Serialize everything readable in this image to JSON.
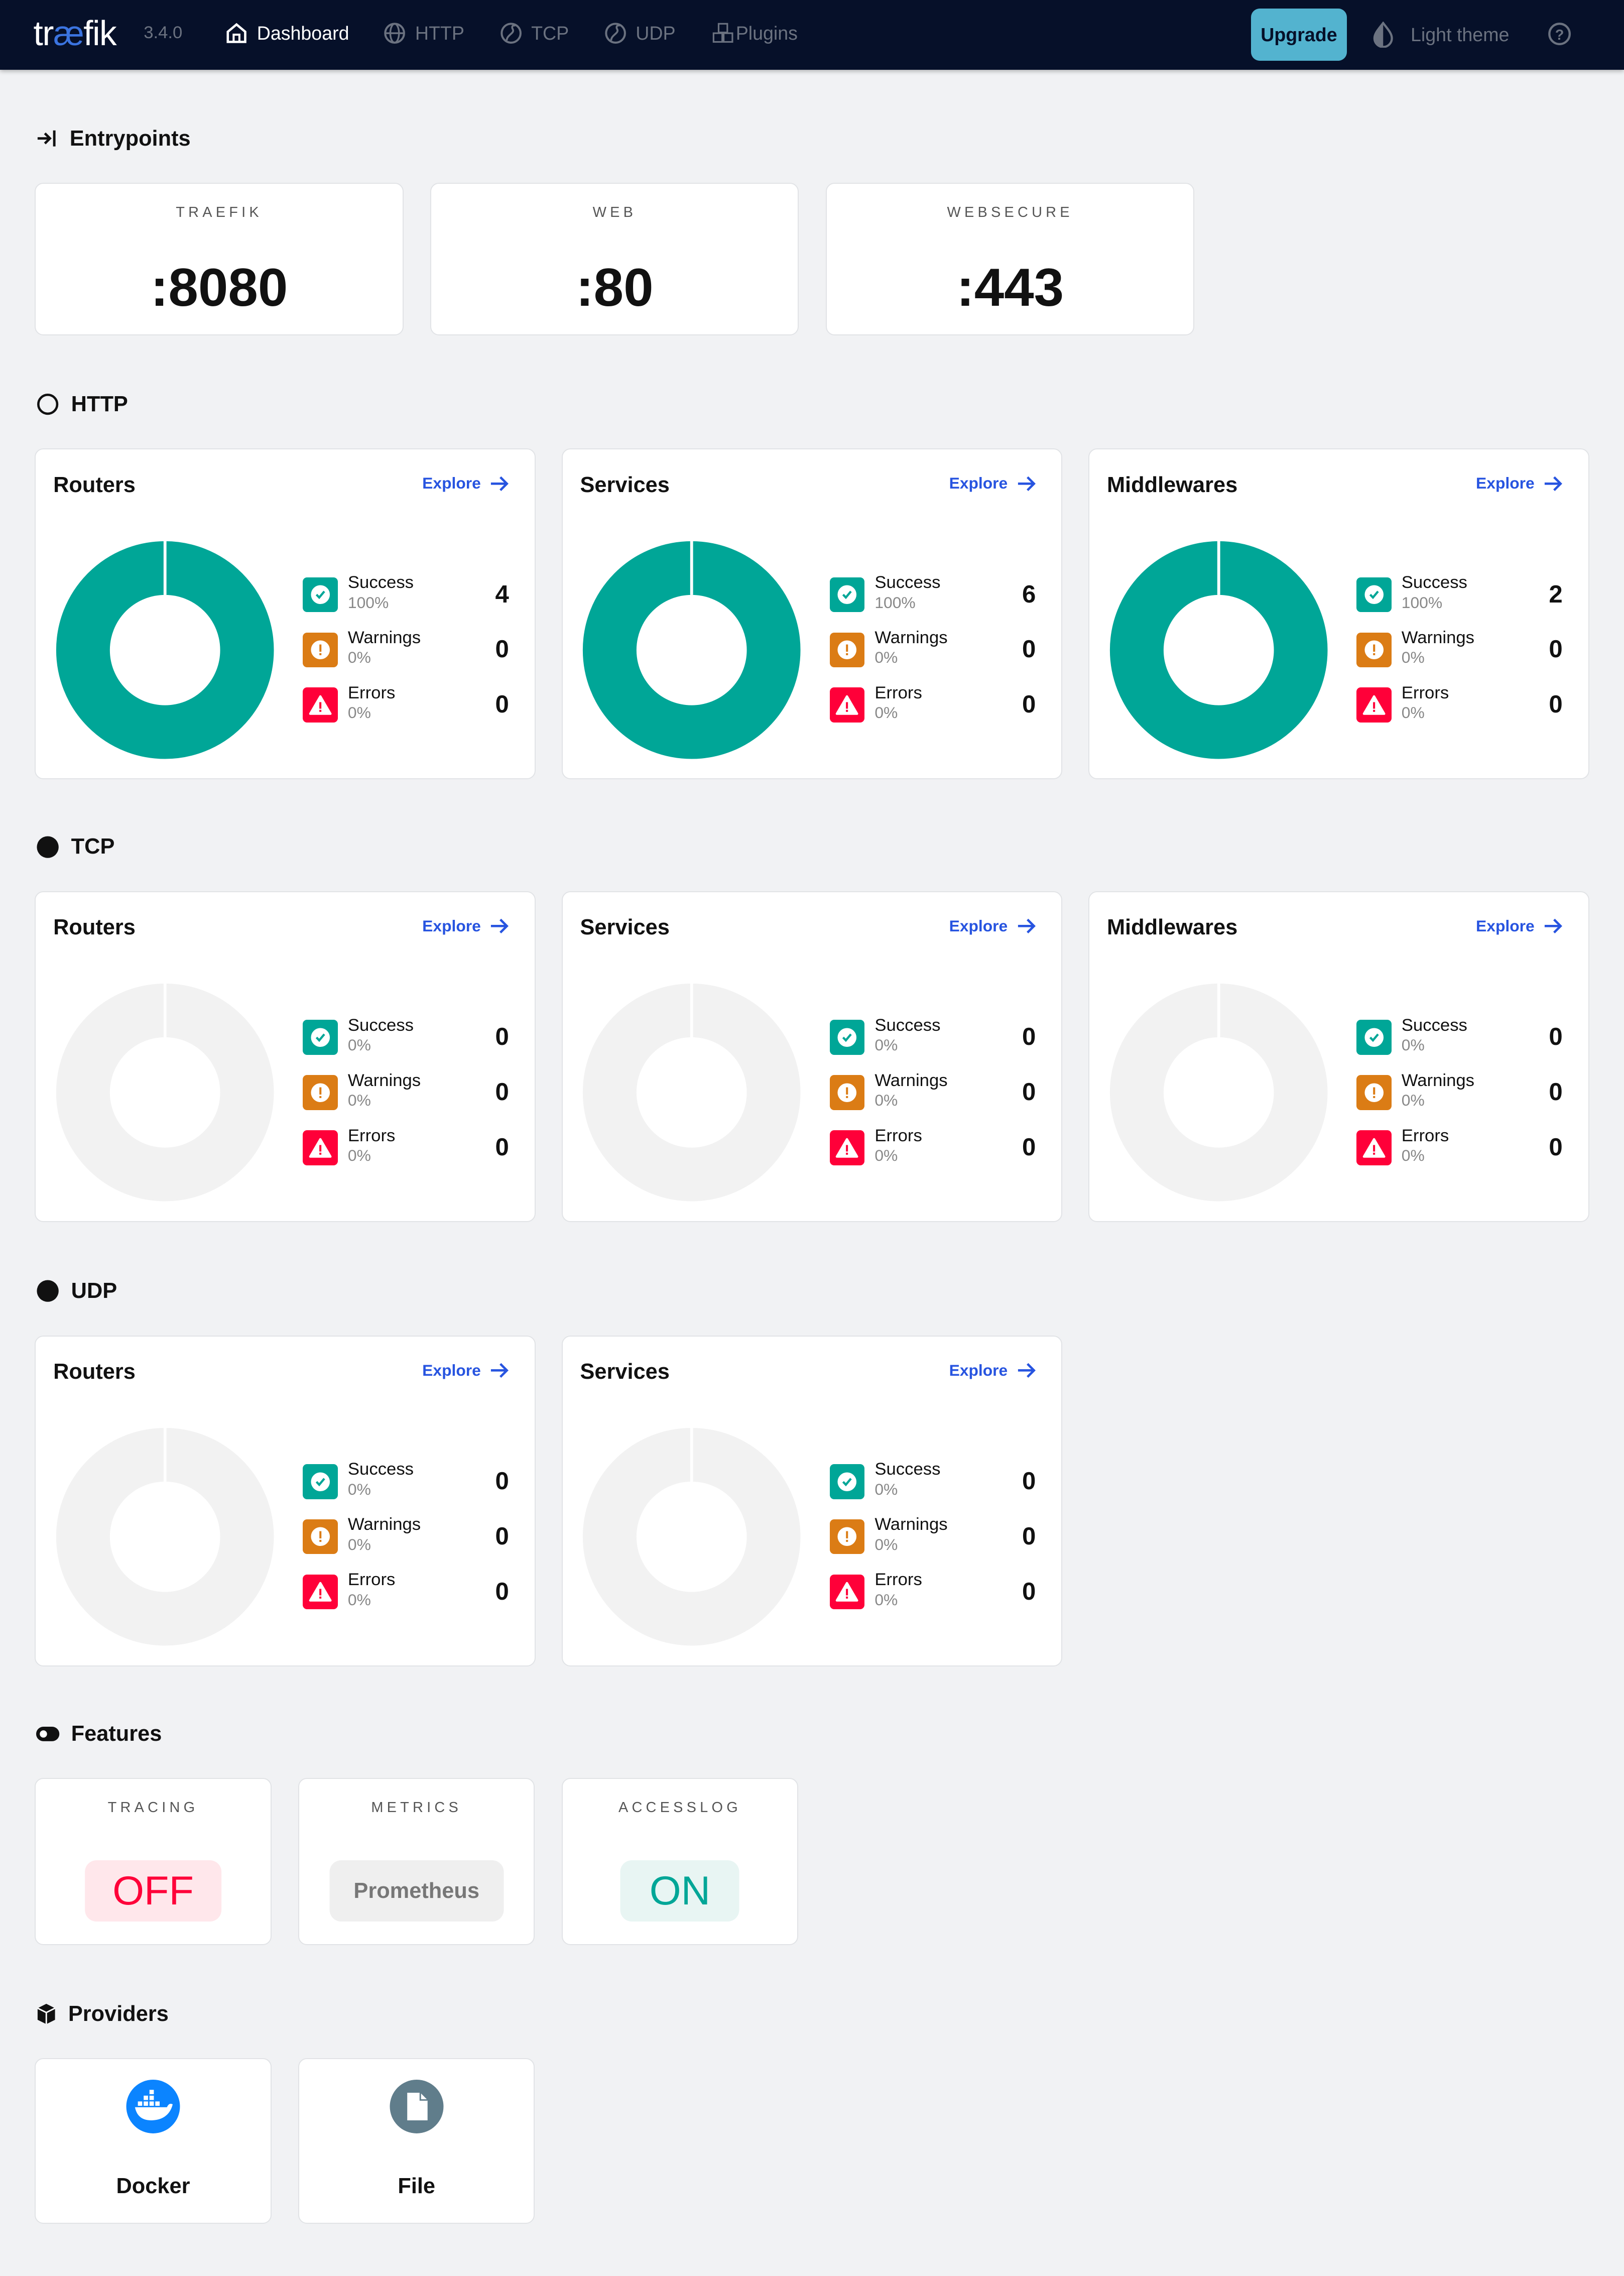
{
  "nav": {
    "logo": "træfik",
    "version": "3.4.0",
    "items": [
      {
        "label": "Dashboard",
        "icon": "home-icon",
        "active": true
      },
      {
        "label": "HTTP",
        "icon": "globe-icon",
        "active": false
      },
      {
        "label": "TCP",
        "icon": "tcp-icon",
        "active": false
      },
      {
        "label": "UDP",
        "icon": "udp-icon",
        "active": false
      },
      {
        "label": "Plugins",
        "icon": "plugins-icon",
        "active": false
      }
    ],
    "upgrade_label": "Upgrade",
    "theme_label": "Light theme",
    "help_icon": "help-icon"
  },
  "colors": {
    "nav_bg": "#061029",
    "accent": "#53b3cf",
    "success": "#00a697",
    "warning": "#db7c15",
    "error": "#ff0039",
    "link": "#2754e0",
    "empty": "#f2f2f2"
  },
  "entrypoints": {
    "title": "Entrypoints",
    "items": [
      {
        "name": "TRAEFIK",
        "address": ":8080"
      },
      {
        "name": "WEB",
        "address": ":80"
      },
      {
        "name": "WEBSECURE",
        "address": ":443"
      }
    ]
  },
  "explore_label": "Explore",
  "legend_labels": {
    "success": "Success",
    "warnings": "Warnings",
    "errors": "Errors"
  },
  "sections": [
    {
      "title": "HTTP",
      "icon": "globe-icon",
      "cards": [
        {
          "title": "Routers",
          "success": 4,
          "success_pct": "100%",
          "warnings": 0,
          "warnings_pct": "0%",
          "errors": 0,
          "errors_pct": "0%"
        },
        {
          "title": "Services",
          "success": 6,
          "success_pct": "100%",
          "warnings": 0,
          "warnings_pct": "0%",
          "errors": 0,
          "errors_pct": "0%"
        },
        {
          "title": "Middlewares",
          "success": 2,
          "success_pct": "100%",
          "warnings": 0,
          "warnings_pct": "0%",
          "errors": 0,
          "errors_pct": "0%"
        }
      ]
    },
    {
      "title": "TCP",
      "icon": "tcp-icon",
      "cards": [
        {
          "title": "Routers",
          "success": 0,
          "success_pct": "0%",
          "warnings": 0,
          "warnings_pct": "0%",
          "errors": 0,
          "errors_pct": "0%"
        },
        {
          "title": "Services",
          "success": 0,
          "success_pct": "0%",
          "warnings": 0,
          "warnings_pct": "0%",
          "errors": 0,
          "errors_pct": "0%"
        },
        {
          "title": "Middlewares",
          "success": 0,
          "success_pct": "0%",
          "warnings": 0,
          "warnings_pct": "0%",
          "errors": 0,
          "errors_pct": "0%"
        }
      ]
    },
    {
      "title": "UDP",
      "icon": "udp-icon",
      "cards": [
        {
          "title": "Routers",
          "success": 0,
          "success_pct": "0%",
          "warnings": 0,
          "warnings_pct": "0%",
          "errors": 0,
          "errors_pct": "0%"
        },
        {
          "title": "Services",
          "success": 0,
          "success_pct": "0%",
          "warnings": 0,
          "warnings_pct": "0%",
          "errors": 0,
          "errors_pct": "0%"
        }
      ]
    }
  ],
  "features": {
    "title": "Features",
    "items": [
      {
        "name": "TRACING",
        "value": "OFF",
        "state": "off"
      },
      {
        "name": "METRICS",
        "value": "Prometheus",
        "state": "neutral"
      },
      {
        "name": "ACCESSLOG",
        "value": "ON",
        "state": "on"
      }
    ]
  },
  "providers": {
    "title": "Providers",
    "items": [
      {
        "name": "Docker",
        "icon": "docker-icon"
      },
      {
        "name": "File",
        "icon": "file-icon"
      }
    ]
  }
}
